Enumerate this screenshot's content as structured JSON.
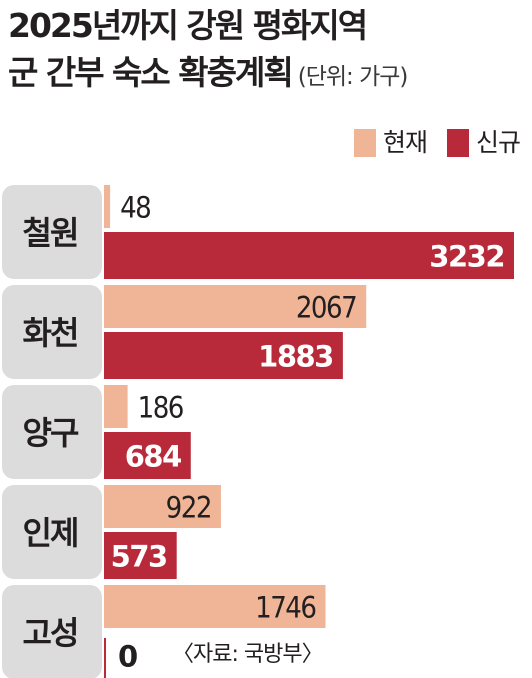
{
  "title": {
    "line1": "2025년까지 강원 평화지역",
    "line2": "군 간부 숙소 확충계획",
    "unit": "(단위: 가구)"
  },
  "legend": [
    {
      "label": "현재",
      "color": "#efb596"
    },
    {
      "label": "신규",
      "color": "#b8293a"
    }
  ],
  "source": "〈자료: 국방부〉",
  "chart_data": {
    "type": "bar",
    "orientation": "horizontal",
    "categories": [
      "철원",
      "화천",
      "양구",
      "인제",
      "고성"
    ],
    "series": [
      {
        "name": "현재",
        "values": [
          48,
          2067,
          186,
          922,
          1746
        ],
        "color": "#efb596"
      },
      {
        "name": "신규",
        "values": [
          3232,
          1883,
          684,
          573,
          0
        ],
        "color": "#b8293a"
      }
    ],
    "xlim": [
      0,
      3232
    ],
    "grid": false,
    "legend_position": "top-right"
  }
}
